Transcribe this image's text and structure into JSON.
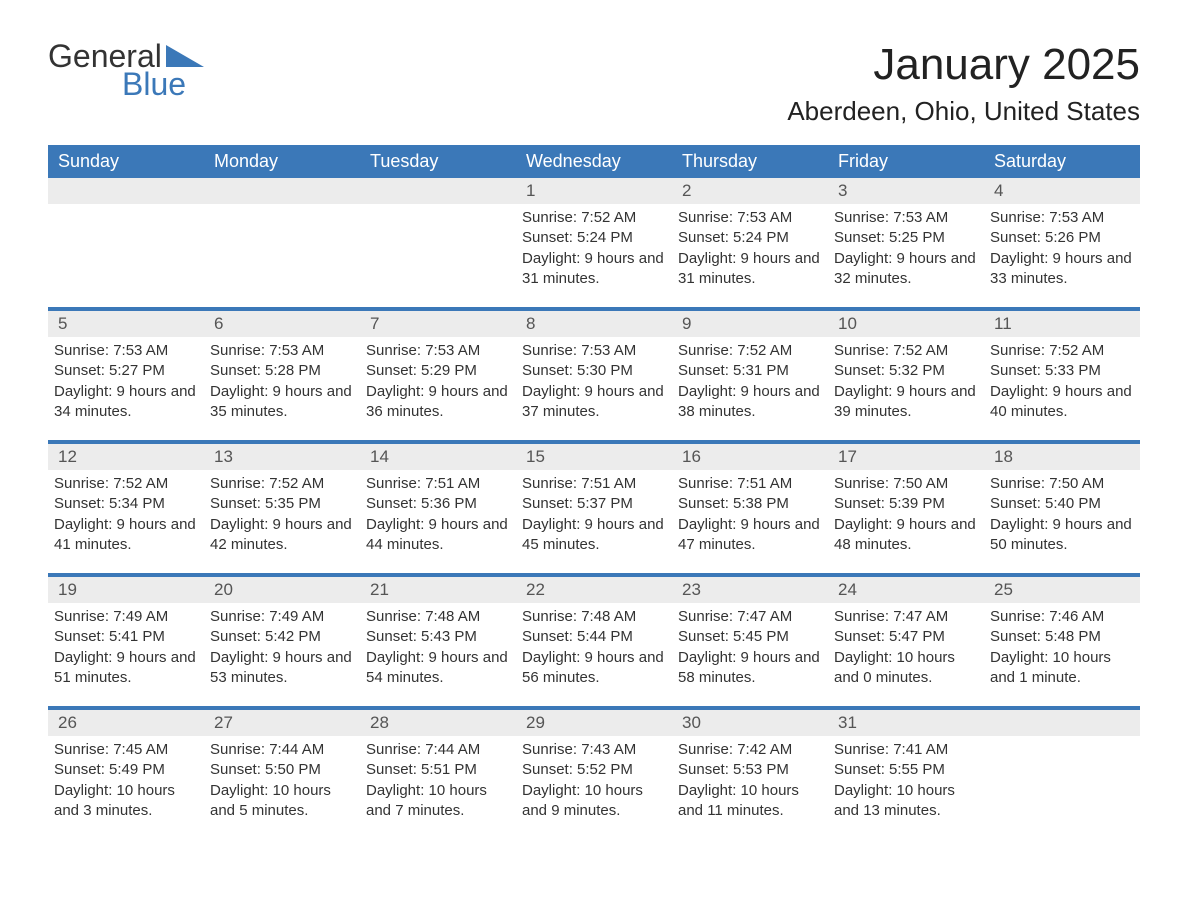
{
  "brand": {
    "part1": "General",
    "part2": "Blue",
    "accent": "#3b78b8",
    "text_color": "#333333"
  },
  "title": "January 2025",
  "location": "Aberdeen, Ohio, United States",
  "styling": {
    "header_bg": "#3b78b8",
    "header_text": "#ffffff",
    "daynum_bg": "#ececec",
    "row_divider": "#3b78b8",
    "body_text": "#333333",
    "title_fontsize": 44,
    "location_fontsize": 26,
    "header_fontsize": 18,
    "cell_fontsize": 15
  },
  "day_names": [
    "Sunday",
    "Monday",
    "Tuesday",
    "Wednesday",
    "Thursday",
    "Friday",
    "Saturday"
  ],
  "weeks": [
    [
      {
        "blank": true
      },
      {
        "blank": true
      },
      {
        "blank": true
      },
      {
        "n": "1",
        "sunrise": "7:52 AM",
        "sunset": "5:24 PM",
        "daylight": "9 hours and 31 minutes."
      },
      {
        "n": "2",
        "sunrise": "7:53 AM",
        "sunset": "5:24 PM",
        "daylight": "9 hours and 31 minutes."
      },
      {
        "n": "3",
        "sunrise": "7:53 AM",
        "sunset": "5:25 PM",
        "daylight": "9 hours and 32 minutes."
      },
      {
        "n": "4",
        "sunrise": "7:53 AM",
        "sunset": "5:26 PM",
        "daylight": "9 hours and 33 minutes."
      }
    ],
    [
      {
        "n": "5",
        "sunrise": "7:53 AM",
        "sunset": "5:27 PM",
        "daylight": "9 hours and 34 minutes."
      },
      {
        "n": "6",
        "sunrise": "7:53 AM",
        "sunset": "5:28 PM",
        "daylight": "9 hours and 35 minutes."
      },
      {
        "n": "7",
        "sunrise": "7:53 AM",
        "sunset": "5:29 PM",
        "daylight": "9 hours and 36 minutes."
      },
      {
        "n": "8",
        "sunrise": "7:53 AM",
        "sunset": "5:30 PM",
        "daylight": "9 hours and 37 minutes."
      },
      {
        "n": "9",
        "sunrise": "7:52 AM",
        "sunset": "5:31 PM",
        "daylight": "9 hours and 38 minutes."
      },
      {
        "n": "10",
        "sunrise": "7:52 AM",
        "sunset": "5:32 PM",
        "daylight": "9 hours and 39 minutes."
      },
      {
        "n": "11",
        "sunrise": "7:52 AM",
        "sunset": "5:33 PM",
        "daylight": "9 hours and 40 minutes."
      }
    ],
    [
      {
        "n": "12",
        "sunrise": "7:52 AM",
        "sunset": "5:34 PM",
        "daylight": "9 hours and 41 minutes."
      },
      {
        "n": "13",
        "sunrise": "7:52 AM",
        "sunset": "5:35 PM",
        "daylight": "9 hours and 42 minutes."
      },
      {
        "n": "14",
        "sunrise": "7:51 AM",
        "sunset": "5:36 PM",
        "daylight": "9 hours and 44 minutes."
      },
      {
        "n": "15",
        "sunrise": "7:51 AM",
        "sunset": "5:37 PM",
        "daylight": "9 hours and 45 minutes."
      },
      {
        "n": "16",
        "sunrise": "7:51 AM",
        "sunset": "5:38 PM",
        "daylight": "9 hours and 47 minutes."
      },
      {
        "n": "17",
        "sunrise": "7:50 AM",
        "sunset": "5:39 PM",
        "daylight": "9 hours and 48 minutes."
      },
      {
        "n": "18",
        "sunrise": "7:50 AM",
        "sunset": "5:40 PM",
        "daylight": "9 hours and 50 minutes."
      }
    ],
    [
      {
        "n": "19",
        "sunrise": "7:49 AM",
        "sunset": "5:41 PM",
        "daylight": "9 hours and 51 minutes."
      },
      {
        "n": "20",
        "sunrise": "7:49 AM",
        "sunset": "5:42 PM",
        "daylight": "9 hours and 53 minutes."
      },
      {
        "n": "21",
        "sunrise": "7:48 AM",
        "sunset": "5:43 PM",
        "daylight": "9 hours and 54 minutes."
      },
      {
        "n": "22",
        "sunrise": "7:48 AM",
        "sunset": "5:44 PM",
        "daylight": "9 hours and 56 minutes."
      },
      {
        "n": "23",
        "sunrise": "7:47 AM",
        "sunset": "5:45 PM",
        "daylight": "9 hours and 58 minutes."
      },
      {
        "n": "24",
        "sunrise": "7:47 AM",
        "sunset": "5:47 PM",
        "daylight": "10 hours and 0 minutes."
      },
      {
        "n": "25",
        "sunrise": "7:46 AM",
        "sunset": "5:48 PM",
        "daylight": "10 hours and 1 minute."
      }
    ],
    [
      {
        "n": "26",
        "sunrise": "7:45 AM",
        "sunset": "5:49 PM",
        "daylight": "10 hours and 3 minutes."
      },
      {
        "n": "27",
        "sunrise": "7:44 AM",
        "sunset": "5:50 PM",
        "daylight": "10 hours and 5 minutes."
      },
      {
        "n": "28",
        "sunrise": "7:44 AM",
        "sunset": "5:51 PM",
        "daylight": "10 hours and 7 minutes."
      },
      {
        "n": "29",
        "sunrise": "7:43 AM",
        "sunset": "5:52 PM",
        "daylight": "10 hours and 9 minutes."
      },
      {
        "n": "30",
        "sunrise": "7:42 AM",
        "sunset": "5:53 PM",
        "daylight": "10 hours and 11 minutes."
      },
      {
        "n": "31",
        "sunrise": "7:41 AM",
        "sunset": "5:55 PM",
        "daylight": "10 hours and 13 minutes."
      },
      {
        "blank": true
      }
    ]
  ],
  "labels": {
    "sunrise": "Sunrise: ",
    "sunset": "Sunset: ",
    "daylight": "Daylight: "
  }
}
